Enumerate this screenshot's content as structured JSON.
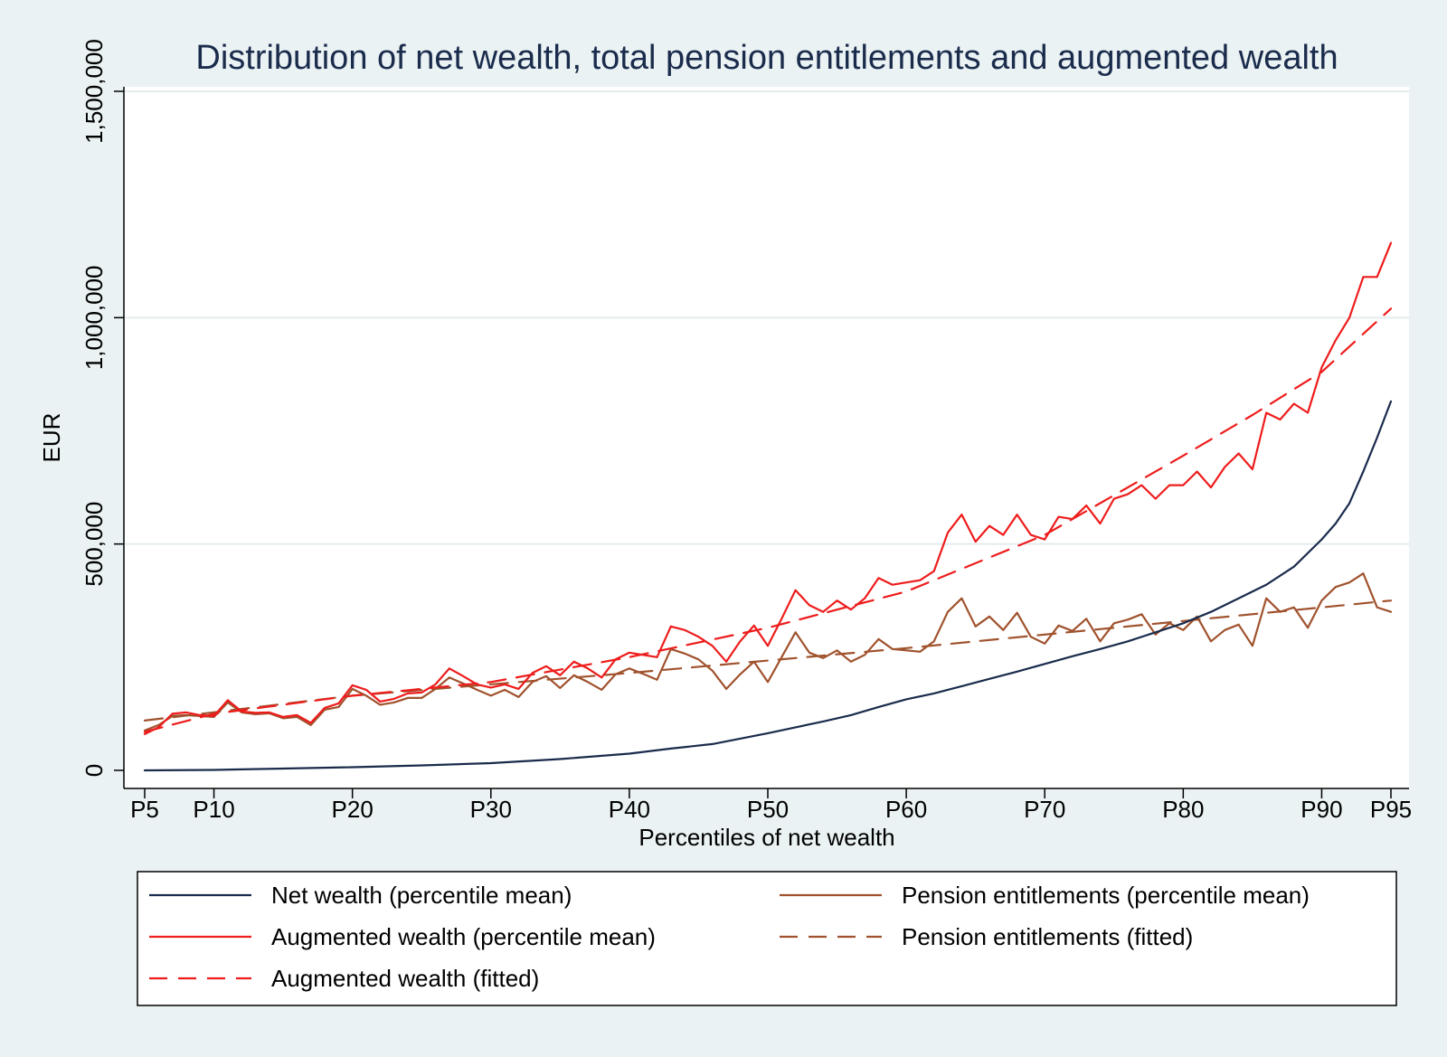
{
  "chart_data": {
    "type": "line",
    "title": "Distribution of net wealth, total pension entitlements and augmented wealth",
    "xlabel": "Percentiles of net wealth",
    "ylabel": "EUR",
    "x_range": [
      5,
      95
    ],
    "ylim": [
      -40000,
      1510000
    ],
    "x_ticks": [
      {
        "value": 5,
        "label": "P5"
      },
      {
        "value": 10,
        "label": "P10"
      },
      {
        "value": 20,
        "label": "P20"
      },
      {
        "value": 30,
        "label": "P30"
      },
      {
        "value": 40,
        "label": "P40"
      },
      {
        "value": 50,
        "label": "P50"
      },
      {
        "value": 60,
        "label": "P60"
      },
      {
        "value": 70,
        "label": "P70"
      },
      {
        "value": 80,
        "label": "P80"
      },
      {
        "value": 90,
        "label": "P90"
      },
      {
        "value": 95,
        "label": "P95"
      }
    ],
    "y_ticks": [
      {
        "value": 0,
        "label": "0"
      },
      {
        "value": 500000,
        "label": "500,000"
      },
      {
        "value": 1000000,
        "label": "1,000,000"
      },
      {
        "value": 1500000,
        "label": "1,500,000"
      }
    ],
    "grid": true,
    "legend_position": "bottom",
    "series": [
      {
        "name": "Net wealth (percentile mean)",
        "color": "#1a2b4c",
        "style": "solid",
        "x": [
          5,
          10,
          15,
          20,
          25,
          30,
          35,
          40,
          43,
          46,
          48,
          50,
          52,
          54,
          56,
          58,
          60,
          62,
          64,
          66,
          68,
          70,
          72,
          74,
          76,
          78,
          80,
          82,
          84,
          86,
          88,
          90,
          91,
          92,
          93,
          94,
          95
        ],
        "values": [
          0,
          1000,
          4000,
          7000,
          11000,
          16000,
          25000,
          37000,
          48000,
          58000,
          70000,
          82000,
          95000,
          108000,
          122000,
          140000,
          157000,
          170000,
          186000,
          202000,
          218000,
          235000,
          252000,
          268000,
          285000,
          305000,
          325000,
          350000,
          380000,
          410000,
          450000,
          510000,
          545000,
          590000,
          660000,
          735000,
          815000
        ]
      },
      {
        "name": "Augmented wealth (percentile mean)",
        "color": "#ee1c1c",
        "style": "solid",
        "x": [
          5,
          6,
          7,
          8,
          9,
          10,
          11,
          12,
          13,
          14,
          15,
          16,
          17,
          18,
          19,
          20,
          21,
          22,
          23,
          24,
          25,
          26,
          27,
          28,
          29,
          30,
          31,
          32,
          33,
          34,
          35,
          36,
          37,
          38,
          39,
          40,
          41,
          42,
          43,
          44,
          45,
          46,
          47,
          48,
          49,
          50,
          51,
          52,
          53,
          54,
          55,
          56,
          57,
          58,
          59,
          60,
          61,
          62,
          63,
          64,
          65,
          66,
          67,
          68,
          69,
          70,
          71,
          72,
          73,
          74,
          75,
          76,
          77,
          78,
          79,
          80,
          81,
          82,
          83,
          84,
          85,
          86,
          87,
          88,
          89,
          90,
          91,
          92,
          93,
          94,
          95
        ],
        "values": [
          80000,
          95000,
          125000,
          128000,
          122000,
          120000,
          155000,
          130000,
          127000,
          128000,
          118000,
          122000,
          105000,
          138000,
          148000,
          188000,
          178000,
          152000,
          158000,
          170000,
          172000,
          190000,
          225000,
          208000,
          190000,
          183000,
          190000,
          180000,
          215000,
          230000,
          210000,
          240000,
          225000,
          205000,
          245000,
          260000,
          255000,
          250000,
          318000,
          310000,
          295000,
          275000,
          240000,
          285000,
          320000,
          275000,
          335000,
          398000,
          365000,
          350000,
          375000,
          355000,
          380000,
          425000,
          410000,
          415000,
          420000,
          440000,
          525000,
          565000,
          505000,
          540000,
          520000,
          565000,
          520000,
          510000,
          560000,
          555000,
          585000,
          545000,
          600000,
          610000,
          630000,
          600000,
          630000,
          630000,
          660000,
          625000,
          670000,
          700000,
          665000,
          790000,
          775000,
          810000,
          790000,
          890000,
          950000,
          1000000,
          1090000,
          1090000,
          1165000
        ]
      },
      {
        "name": "Augmented wealth (fitted)",
        "color": "#ee1c1c",
        "style": "dashed",
        "x": [
          5,
          10,
          20,
          30,
          40,
          50,
          60,
          70,
          80,
          85,
          90,
          95
        ],
        "values": [
          85000,
          125000,
          165000,
          195000,
          250000,
          315000,
          395000,
          520000,
          695000,
          785000,
          880000,
          1020000
        ]
      },
      {
        "name": "Pension entitlements (percentile mean)",
        "color": "#a0522d",
        "style": "solid",
        "x": [
          5,
          6,
          7,
          8,
          9,
          10,
          11,
          12,
          13,
          14,
          15,
          16,
          17,
          18,
          19,
          20,
          21,
          22,
          23,
          24,
          25,
          26,
          27,
          28,
          29,
          30,
          31,
          32,
          33,
          34,
          35,
          36,
          37,
          38,
          39,
          40,
          41,
          42,
          43,
          44,
          45,
          46,
          47,
          48,
          49,
          50,
          51,
          52,
          53,
          54,
          55,
          56,
          57,
          58,
          59,
          60,
          61,
          62,
          63,
          64,
          65,
          66,
          67,
          68,
          69,
          70,
          71,
          72,
          73,
          74,
          75,
          76,
          77,
          78,
          79,
          80,
          81,
          82,
          83,
          84,
          85,
          86,
          87,
          88,
          89,
          90,
          91,
          92,
          93,
          94,
          95
        ],
        "values": [
          88000,
          100000,
          120000,
          122000,
          120000,
          118000,
          150000,
          128000,
          124000,
          126000,
          115000,
          118000,
          100000,
          134000,
          140000,
          180000,
          165000,
          145000,
          150000,
          160000,
          160000,
          180000,
          205000,
          192000,
          178000,
          165000,
          178000,
          162000,
          195000,
          208000,
          182000,
          210000,
          195000,
          178000,
          212000,
          225000,
          213000,
          200000,
          268000,
          258000,
          245000,
          220000,
          180000,
          212000,
          240000,
          195000,
          250000,
          305000,
          260000,
          248000,
          265000,
          240000,
          255000,
          290000,
          268000,
          265000,
          262000,
          285000,
          350000,
          380000,
          318000,
          340000,
          310000,
          348000,
          295000,
          280000,
          320000,
          308000,
          335000,
          285000,
          325000,
          333000,
          345000,
          300000,
          325000,
          310000,
          340000,
          285000,
          310000,
          322000,
          275000,
          380000,
          350000,
          360000,
          315000,
          375000,
          405000,
          415000,
          435000,
          360000,
          350000
        ]
      },
      {
        "name": "Pension entitlements (fitted)",
        "color": "#a0522d",
        "style": "dashed",
        "x": [
          5,
          20,
          40,
          60,
          80,
          95
        ],
        "values": [
          110000,
          165000,
          215000,
          270000,
          330000,
          375000
        ]
      }
    ]
  },
  "legend": [
    {
      "label": "Net wealth (percentile mean)",
      "color": "#1a2b4c",
      "style": "solid"
    },
    {
      "label": "Pension entitlements (percentile mean)",
      "color": "#a0522d",
      "style": "solid"
    },
    {
      "label": "Augmented wealth (percentile mean)",
      "color": "#ee1c1c",
      "style": "solid"
    },
    {
      "label": "Pension entitlements (fitted)",
      "color": "#a0522d",
      "style": "dashed"
    },
    {
      "label": "Augmented wealth (fitted)",
      "color": "#ee1c1c",
      "style": "dashed"
    }
  ]
}
